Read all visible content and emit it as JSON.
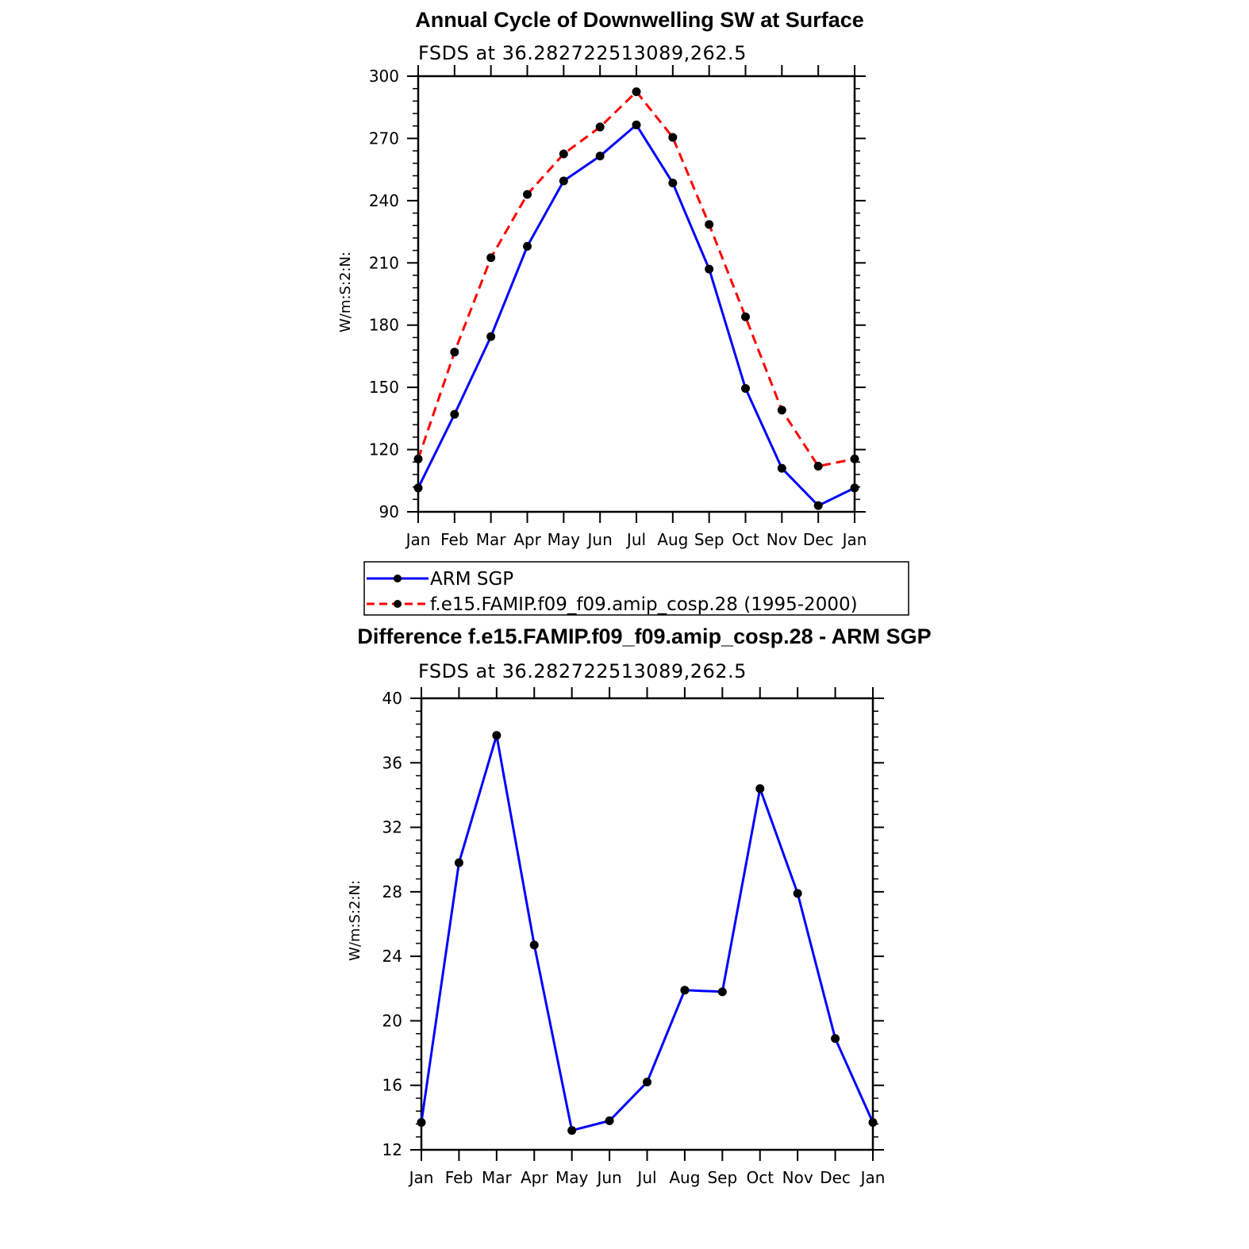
{
  "chart_data": [
    {
      "type": "line",
      "title": "Annual Cycle of Downwelling SW at Surface",
      "subtitle": "FSDS at 36.282722513089,262.5",
      "ylabel": "W/m:S:2:N:",
      "xlabel": "",
      "categories": [
        "Jan",
        "Feb",
        "Mar",
        "Apr",
        "May",
        "Jun",
        "Jul",
        "Aug",
        "Sep",
        "Oct",
        "Nov",
        "Dec",
        "Jan"
      ],
      "ylim": [
        90,
        300
      ],
      "yticks": [
        90,
        120,
        150,
        180,
        210,
        240,
        270,
        300
      ],
      "series": [
        {
          "name": "ARM SGP",
          "color": "#0000ff",
          "dash": "solid",
          "marker": "filled-circle",
          "values": [
            101.5,
            137,
            174.5,
            218,
            249.5,
            261.5,
            276.5,
            248.5,
            207,
            149.5,
            111,
            93,
            101.5
          ]
        },
        {
          "name": "f.e15.FAMIP.f09_f09.amip_cosp.28 (1995-2000)",
          "color": "#ff0000",
          "dash": "dashed",
          "marker": "filled-circle",
          "values": [
            115.5,
            167,
            212.5,
            243,
            262.5,
            275.5,
            292.5,
            270.5,
            228.5,
            184,
            139,
            112,
            115.5
          ]
        }
      ],
      "legend": "below",
      "grid": false
    },
    {
      "type": "line",
      "title": "Difference f.e15.FAMIP.f09_f09.amip_cosp.28 - ARM SGP",
      "subtitle": "FSDS at 36.282722513089,262.5",
      "ylabel": "W/m:S:2:N:",
      "xlabel": "",
      "categories": [
        "Jan",
        "Feb",
        "Mar",
        "Apr",
        "May",
        "Jun",
        "Jul",
        "Aug",
        "Sep",
        "Oct",
        "Nov",
        "Dec",
        "Jan"
      ],
      "ylim": [
        12,
        40
      ],
      "yticks": [
        12,
        16,
        20,
        24,
        28,
        32,
        36,
        40
      ],
      "series": [
        {
          "color": "#0000ff",
          "dash": "solid",
          "marker": "filled-circle",
          "values": [
            13.7,
            29.8,
            37.7,
            24.7,
            13.2,
            13.8,
            16.2,
            21.9,
            21.8,
            34.4,
            27.9,
            18.9,
            13.7
          ]
        }
      ],
      "grid": false
    }
  ]
}
